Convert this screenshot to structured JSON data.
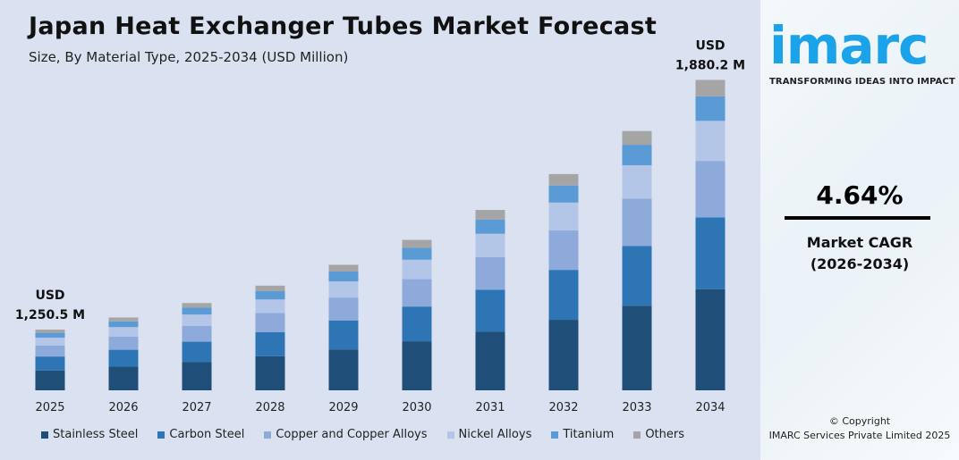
{
  "header": {
    "title": "Japan Heat Exchanger Tubes Market Forecast",
    "subtitle": "Size, By Material Type, 2025-2034 (USD Million)"
  },
  "chart_data": {
    "type": "bar",
    "stacked": true,
    "title": "Japan Heat Exchanger Tubes Market Forecast",
    "subtitle": "Size, By Material Type, 2025-2034 (USD Million)",
    "categories": [
      "2025",
      "2026",
      "2027",
      "2028",
      "2029",
      "2030",
      "2031",
      "2032",
      "2033",
      "2034"
    ],
    "totals": [
      1250.5,
      1308.5,
      1369.2,
      1432.8,
      1499.3,
      1568.8,
      1641.6,
      1717.8,
      1797.5,
      1880.2
    ],
    "series": [
      {
        "name": "Stainless Steel",
        "color": "#1f4e79",
        "share": 0.326
      },
      {
        "name": "Carbon Steel",
        "color": "#2e75b6",
        "share": 0.231
      },
      {
        "name": "Copper and Copper Alloys",
        "color": "#8eaadb",
        "share": 0.182
      },
      {
        "name": "Nickel Alloys",
        "color": "#b4c6e7",
        "share": 0.129
      },
      {
        "name": "Titanium",
        "color": "#5b9bd5",
        "share": 0.079
      },
      {
        "name": "Others",
        "color": "#a5a5a5",
        "share": 0.053
      }
    ],
    "annotations": [
      {
        "category": "2025",
        "line1": "USD",
        "line2": "1,250.5 M"
      },
      {
        "category": "2034",
        "line1": "USD",
        "line2": "1,880.2 M"
      }
    ],
    "grid": false,
    "legend": "bottom",
    "yaxis_visible": false
  },
  "side": {
    "logo": "imarc",
    "tagline": "TRANSFORMING IDEAS INTO IMPACT",
    "cagr": "4.64%",
    "cagr_label": "Market CAGR",
    "cagr_period": "(2026-2034)",
    "copyright": "© Copyright",
    "copyright_owner": "IMARC Services Private Limited 2025"
  }
}
